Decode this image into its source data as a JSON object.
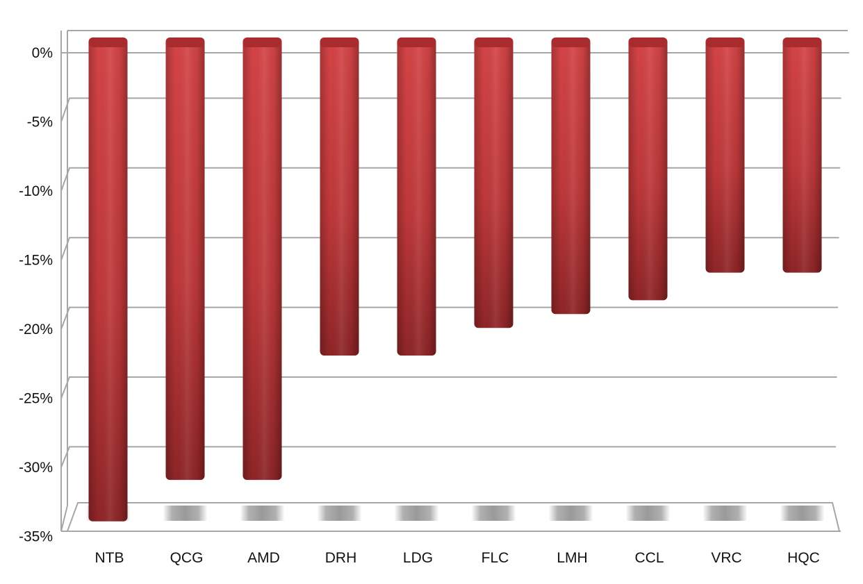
{
  "chart_data": {
    "type": "bar",
    "categories": [
      "NTB",
      "QCG",
      "AMD",
      "DRH",
      "LDG",
      "FLC",
      "LMH",
      "CCL",
      "VRC",
      "HQC"
    ],
    "series": [
      {
        "values": [
          -32,
          -29,
          -29,
          -20,
          -20,
          -18,
          -17,
          -16,
          -14,
          -14
        ]
      }
    ],
    "ylim": [
      -35,
      0
    ],
    "yticks": [
      0,
      -5,
      -10,
      -15,
      -20,
      -25,
      -30,
      -35
    ],
    "ytick_labels": [
      "0%",
      "-5%",
      "-10%",
      "-15%",
      "-20%",
      "-25%",
      "-30%",
      "-35%"
    ],
    "style": "3d-cylinder",
    "grid": true,
    "legend": "none",
    "bar_color": "#c63a3c",
    "title": "",
    "xlabel": "",
    "ylabel": ""
  }
}
